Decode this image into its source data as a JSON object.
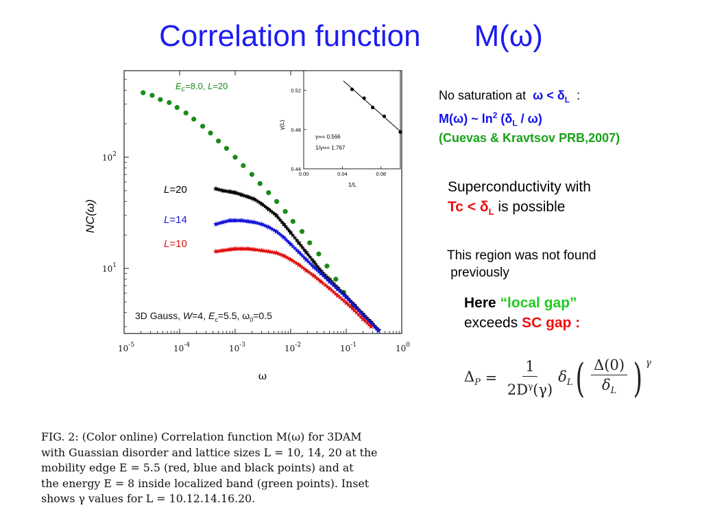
{
  "slide": {
    "title_left": "Correlation  function",
    "title_right": "M(ω)"
  },
  "notes": {
    "line1_prefix": "No saturation  at",
    "line1_condition_omega": "ω < δ",
    "line1_condition_sub": "L",
    "line1_suffix": ":",
    "line2_left": "M(ω)  ~ ln",
    "line2_sup": "2",
    "line2_right_open": " (δ",
    "line2_sub": "L",
    "line2_right_close": " / ω)",
    "line3": "(Cuevas & Kravtsov  PRB,2007)",
    "supercond_line1": "Superconductivity  with",
    "supercond_tc": "Tc < δ",
    "supercond_sub": "L",
    "supercond_rest": "  is possible",
    "region_line1": "This region was not found",
    "region_line2": " previously",
    "here_word": "Here ",
    "here_gap": "“local gap”",
    "exceeds_word": "exceeds ",
    "exceeds_gap": "SC gap  :"
  },
  "formula": {
    "lhs": "Δ",
    "lhs_sub": "P",
    "eq": " = ",
    "num": "1",
    "den_a": "2D",
    "den_sup": "γ",
    "den_b": "(γ)",
    "delta": "δ",
    "delta_sub": "L",
    "inner_num": "Δ(0)",
    "inner_den": "δ",
    "inner_den_sub": "L",
    "power": "γ"
  },
  "caption": {
    "lines": [
      "FIG. 2: (Color online) Correlation function M(ω) for 3DAM",
      "with Guassian disorder and lattice sizes L = 10, 14, 20 at the",
      "mobility edge E = 5.5 (red, blue and black points) and at",
      "the energy E = 8 inside localized band (green points).  Inset",
      "shows γ values for L = 10.12.14.16.20."
    ]
  },
  "chart_data": [
    {
      "type": "scatter",
      "title": "",
      "xlabel": "ω",
      "ylabel": "NC(ω)",
      "xscale": "log",
      "yscale": "log",
      "xlim": [
        1e-05,
        1
      ],
      "ylim": [
        2.6,
        600
      ],
      "x_ticks": [
        {
          "base": "10",
          "exp": "-5"
        },
        {
          "base": "10",
          "exp": "-4"
        },
        {
          "base": "10",
          "exp": "-3"
        },
        {
          "base": "10",
          "exp": "-2"
        },
        {
          "base": "10",
          "exp": "-1"
        },
        {
          "base": "10",
          "exp": "0"
        }
      ],
      "y_ticks": [
        {
          "base": "10",
          "exp": "1"
        },
        {
          "base": "10",
          "exp": "2"
        }
      ],
      "annotation": {
        "prefix": "3D Gauss, ",
        "W": "W",
        "W_val": "=4, ",
        "E": "E",
        "E_sub": "c",
        "E_val": "=5.5, ω",
        "omega_sub": "0",
        "omega_val": "=0.5"
      },
      "legend_placement": "inline labels",
      "series": [
        {
          "name": "E_F=8.0, L=20",
          "label_E": "E",
          "label_sub": "F",
          "label_rest": "=8.0, ",
          "label_L": "L",
          "label_L_rest": "=20",
          "color": "#1a8a1a",
          "marker": "circle",
          "x": [
            2.2e-05,
            3.2e-05,
            4.5e-05,
            6.5e-05,
            9e-05,
            0.00013,
            0.00018,
            0.00026,
            0.00036,
            0.0005,
            0.0007,
            0.001,
            0.0014,
            0.002,
            0.0028,
            0.004,
            0.0056,
            0.008,
            0.011,
            0.016,
            0.022,
            0.032,
            0.045,
            0.065,
            0.09,
            0.13
          ],
          "y": [
            380,
            360,
            330,
            310,
            280,
            250,
            220,
            190,
            165,
            140,
            120,
            100,
            84,
            70,
            58,
            48,
            40,
            32.5,
            26.5,
            21.5,
            17,
            13.5,
            10.5,
            8.0,
            6.1,
            4.6
          ]
        },
        {
          "name": "L=20",
          "label_L": "L",
          "label_rest": "=20",
          "color": "#000000",
          "marker": "star",
          "x": [
            0.00045,
            0.0006,
            0.0008,
            0.001,
            0.0013,
            0.0017,
            0.0022,
            0.003,
            0.004,
            0.0055,
            0.0075,
            0.01,
            0.014,
            0.019,
            0.026,
            0.035,
            0.05,
            0.07,
            0.1,
            0.14,
            0.2,
            0.28,
            0.38
          ],
          "y": [
            52,
            50,
            49,
            48,
            46,
            44,
            42,
            38,
            34,
            30,
            25,
            21,
            17,
            14,
            11.5,
            9.5,
            8,
            6.7,
            5.6,
            4.7,
            3.9,
            3.3,
            2.8
          ]
        },
        {
          "name": "L=14",
          "label_L": "L",
          "label_rest": "=14",
          "color": "#1515d8",
          "marker": "star",
          "x": [
            0.00045,
            0.0006,
            0.0008,
            0.001,
            0.0013,
            0.0017,
            0.0022,
            0.003,
            0.004,
            0.0055,
            0.0075,
            0.01,
            0.014,
            0.019,
            0.026,
            0.035,
            0.05,
            0.07,
            0.1,
            0.14,
            0.2,
            0.28,
            0.38
          ],
          "y": [
            25,
            26,
            27,
            27,
            27,
            26.5,
            26,
            25,
            23.5,
            21.5,
            19,
            16.5,
            14,
            12,
            10.3,
            9,
            7.6,
            6.5,
            5.5,
            4.6,
            3.8,
            3.2,
            2.75
          ]
        },
        {
          "name": "L=10",
          "label_L": "L",
          "label_rest": "=10",
          "color": "#e01010",
          "marker": "star",
          "x": [
            0.00045,
            0.0006,
            0.0008,
            0.001,
            0.0013,
            0.0017,
            0.0022,
            0.003,
            0.004,
            0.0055,
            0.0075,
            0.01,
            0.014,
            0.019,
            0.026,
            0.035,
            0.05,
            0.07,
            0.1,
            0.14,
            0.2,
            0.28
          ],
          "y": [
            14.2,
            14.5,
            14.8,
            15,
            15,
            15,
            14.8,
            14.5,
            14.2,
            13.8,
            13,
            12,
            10.8,
            9.6,
            8.6,
            7.6,
            6.6,
            5.7,
            4.9,
            4.2,
            3.5,
            3.0
          ]
        }
      ]
    },
    {
      "type": "scatter",
      "title": "",
      "xlabel": "1/L",
      "ylabel": "γ(L)",
      "xlim": [
        0,
        0.1
      ],
      "ylim": [
        0.44,
        0.54
      ],
      "x_ticks": [
        "0.00",
        "0.04",
        "0.08"
      ],
      "y_ticks": [
        "0.44",
        "0.48",
        "0.52"
      ],
      "annotations": [
        "γ∞= 0.566",
        "1/γ∞= 1.767"
      ],
      "series": [
        {
          "name": "",
          "color": "#000000",
          "x": [
            0.05,
            0.0625,
            0.0714,
            0.0833,
            0.1
          ],
          "y": [
            0.521,
            0.512,
            0.5025,
            0.4935,
            0.4775
          ]
        }
      ]
    }
  ]
}
